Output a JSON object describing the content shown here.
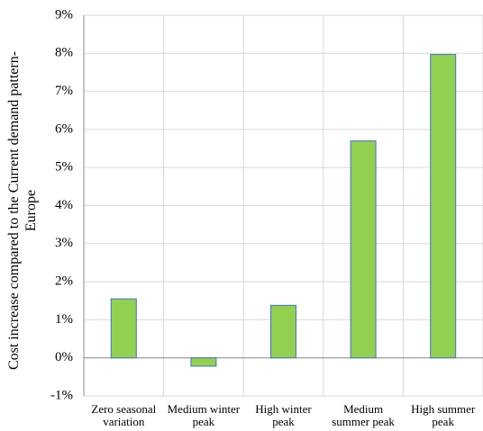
{
  "chart_data": {
    "type": "bar",
    "y_label": "Cost increase compared to the Current demand pattern-Europe",
    "categories": [
      "Zero seasonal variation",
      "Medium winter peak",
      "High winter peak",
      "Medium summer peak",
      "High summer peak"
    ],
    "values": [
      1.55,
      -0.22,
      1.38,
      5.7,
      7.97
    ],
    "color": "#92d050",
    "edge_color": "#4472c4",
    "ylim": [
      -1,
      9
    ],
    "yticks": [
      {
        "value": -1,
        "label": "-1%"
      },
      {
        "value": 0,
        "label": "0%"
      },
      {
        "value": 1,
        "label": "1%"
      },
      {
        "value": 2,
        "label": "2%"
      },
      {
        "value": 3,
        "label": "3%"
      },
      {
        "value": 4,
        "label": "4%"
      },
      {
        "value": 5,
        "label": "5%"
      },
      {
        "value": 6,
        "label": "6%"
      },
      {
        "value": 7,
        "label": "7%"
      },
      {
        "value": 8,
        "label": "8%"
      },
      {
        "value": 9,
        "label": "9%"
      }
    ],
    "grid": true
  }
}
